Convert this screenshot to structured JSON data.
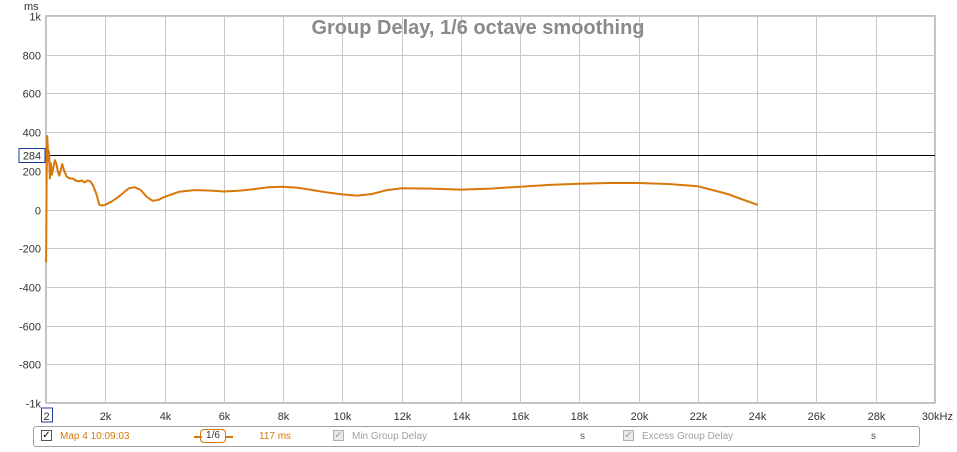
{
  "chart_data": {
    "type": "line",
    "title": "Group Delay, 1/6 octave smoothing",
    "y_unit_label": "ms",
    "x_unit_label": "kHz",
    "xlim": [
      0,
      30000
    ],
    "ylim": [
      -1000,
      1000
    ],
    "x_ticks": [
      {
        "value": 0,
        "label": "2"
      },
      {
        "value": 2000,
        "label": "2k"
      },
      {
        "value": 4000,
        "label": "4k"
      },
      {
        "value": 6000,
        "label": "6k"
      },
      {
        "value": 8000,
        "label": "8k"
      },
      {
        "value": 10000,
        "label": "10k"
      },
      {
        "value": 12000,
        "label": "12k"
      },
      {
        "value": 14000,
        "label": "14k"
      },
      {
        "value": 16000,
        "label": "16k"
      },
      {
        "value": 18000,
        "label": "18k"
      },
      {
        "value": 20000,
        "label": "20k"
      },
      {
        "value": 22000,
        "label": "22k"
      },
      {
        "value": 24000,
        "label": "24k"
      },
      {
        "value": 26000,
        "label": "26k"
      },
      {
        "value": 28000,
        "label": "28k"
      },
      {
        "value": 30000,
        "label": "30kHz"
      }
    ],
    "y_ticks": [
      {
        "value": 1000,
        "label": "1k"
      },
      {
        "value": 800,
        "label": "800"
      },
      {
        "value": 600,
        "label": "600"
      },
      {
        "value": 400,
        "label": "400"
      },
      {
        "value": 200,
        "label": "200"
      },
      {
        "value": 0,
        "label": "0"
      },
      {
        "value": -200,
        "label": "-200"
      },
      {
        "value": -400,
        "label": "-400"
      },
      {
        "value": -600,
        "label": "-600"
      },
      {
        "value": -800,
        "label": "-800"
      },
      {
        "value": -1000,
        "label": "-1k"
      }
    ],
    "grid": true,
    "cursor": {
      "y": 284,
      "label": "284",
      "color": "#000000"
    },
    "series": [
      {
        "color": "#d8770a",
        "x": [
          2,
          20,
          40,
          60,
          80,
          100,
          130,
          160,
          200,
          250,
          300,
          350,
          400,
          450,
          500,
          550,
          600,
          700,
          800,
          900,
          1000,
          1100,
          1200,
          1300,
          1400,
          1500,
          1600,
          1700,
          1800,
          1900,
          2000,
          2200,
          2400,
          2600,
          2800,
          3000,
          3200,
          3400,
          3600,
          3800,
          4000,
          4500,
          5000,
          5500,
          6000,
          6500,
          7000,
          7500,
          8000,
          8500,
          9000,
          9500,
          10000,
          10500,
          11000,
          11500,
          12000,
          13000,
          14000,
          15000,
          16000,
          17000,
          18000,
          19000,
          20000,
          21000,
          22000,
          22500,
          23000,
          23500,
          24000
        ],
        "y": [
          -270,
          150,
          380,
          320,
          250,
          300,
          160,
          240,
          180,
          220,
          255,
          235,
          195,
          175,
          205,
          235,
          205,
          170,
          160,
          160,
          150,
          145,
          150,
          140,
          150,
          145,
          120,
          80,
          25,
          20,
          25,
          40,
          60,
          85,
          110,
          115,
          100,
          65,
          45,
          50,
          65,
          92,
          100,
          98,
          93,
          97,
          105,
          115,
          118,
          112,
          100,
          88,
          78,
          72,
          80,
          100,
          110,
          108,
          103,
          108,
          118,
          127,
          133,
          137,
          137,
          132,
          120,
          100,
          80,
          52,
          25
        ]
      }
    ]
  },
  "legend": {
    "measurement_name": "Map 4 10:09:03",
    "smoothing": "1/6",
    "value_readout": "117 ms",
    "items": [
      {
        "label": "Min Group Delay",
        "unit": "s"
      },
      {
        "label": "Excess Group Delay",
        "unit": "s"
      }
    ]
  }
}
